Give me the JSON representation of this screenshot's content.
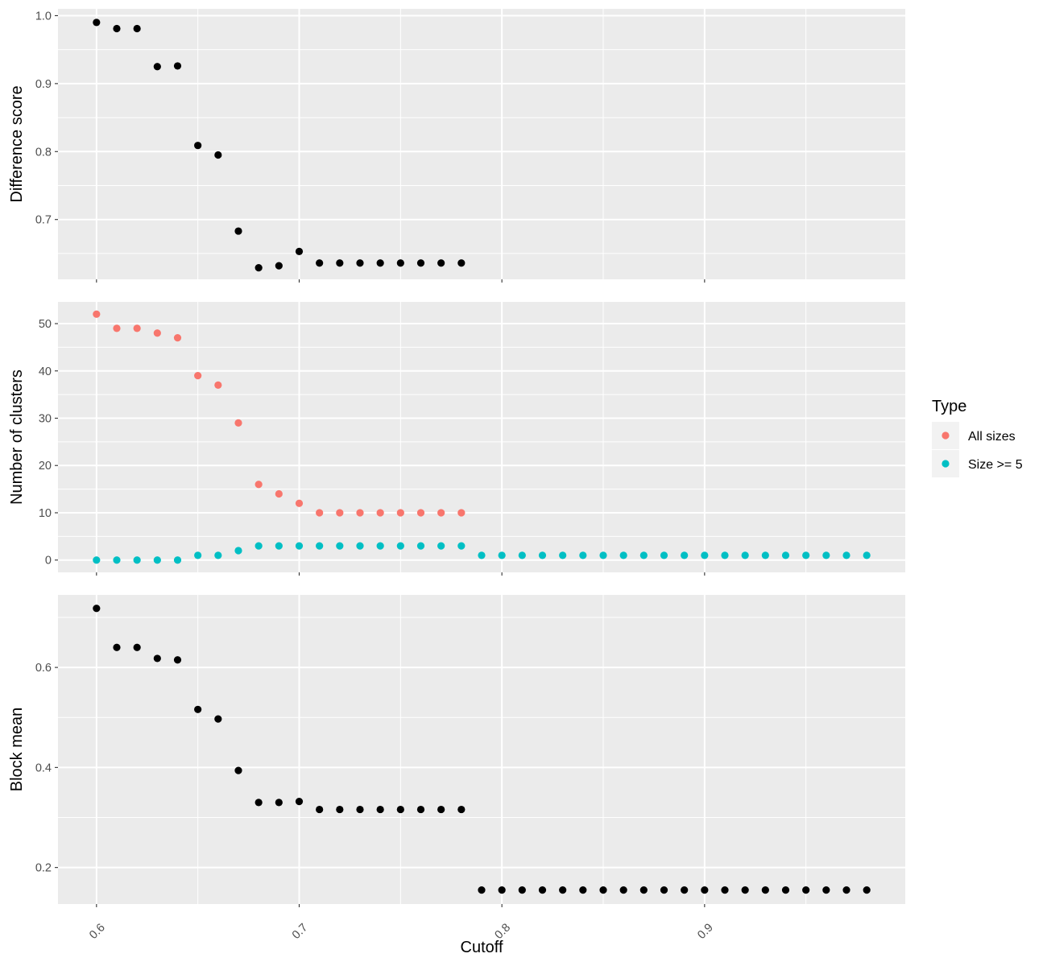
{
  "chart_data": {
    "type": "scatter",
    "xlabel": "Cutoff",
    "x_ticks": [
      "0.6",
      "0.7",
      "0.8",
      "0.9"
    ],
    "x_tick_values": [
      0.6,
      0.7,
      0.8,
      0.9
    ],
    "xlim": [
      0.581,
      0.999
    ],
    "grid": true,
    "legend": {
      "title": "Type",
      "placement": "right",
      "entries": [
        {
          "name": "All sizes",
          "color": "#F8766D"
        },
        {
          "name": "Size >= 5",
          "color": "#00BFC4"
        }
      ]
    },
    "panels": [
      {
        "id": "difference",
        "ylabel": "Difference score",
        "ylim": [
          0.612,
          1.01
        ],
        "y_ticks": [
          "0.7",
          "0.8",
          "0.9",
          "1.0"
        ],
        "y_tick_values": [
          0.7,
          0.8,
          0.9,
          1.0
        ],
        "series": [
          {
            "color": "#000000",
            "x": [
              0.6,
              0.61,
              0.62,
              0.63,
              0.64,
              0.65,
              0.66,
              0.67,
              0.68,
              0.69,
              0.7,
              0.71,
              0.72,
              0.73,
              0.74,
              0.75,
              0.76,
              0.77,
              0.78
            ],
            "y": [
              0.99,
              0.981,
              0.981,
              0.925,
              0.926,
              0.809,
              0.795,
              0.683,
              0.629,
              0.632,
              0.653,
              0.636,
              0.636,
              0.636,
              0.636,
              0.636,
              0.636,
              0.636,
              0.636
            ]
          }
        ]
      },
      {
        "id": "clusters",
        "ylabel": "Number of clusters",
        "ylim": [
          -2.6,
          54.6
        ],
        "y_ticks": [
          "0",
          "10",
          "20",
          "30",
          "40",
          "50"
        ],
        "y_tick_values": [
          0,
          10,
          20,
          30,
          40,
          50
        ],
        "series": [
          {
            "name": "All sizes",
            "color": "#F8766D",
            "x": [
              0.6,
              0.61,
              0.62,
              0.63,
              0.64,
              0.65,
              0.66,
              0.67,
              0.68,
              0.69,
              0.7,
              0.71,
              0.72,
              0.73,
              0.74,
              0.75,
              0.76,
              0.77,
              0.78
            ],
            "y": [
              52,
              49,
              49,
              48,
              47,
              39,
              37,
              29,
              16,
              14,
              12,
              10,
              10,
              10,
              10,
              10,
              10,
              10,
              10
            ]
          },
          {
            "name": "Size >= 5",
            "color": "#00BFC4",
            "x": [
              0.6,
              0.61,
              0.62,
              0.63,
              0.64,
              0.65,
              0.66,
              0.67,
              0.68,
              0.69,
              0.7,
              0.71,
              0.72,
              0.73,
              0.74,
              0.75,
              0.76,
              0.77,
              0.78,
              0.79,
              0.8,
              0.81,
              0.82,
              0.83,
              0.84,
              0.85,
              0.86,
              0.87,
              0.88,
              0.89,
              0.9,
              0.91,
              0.92,
              0.93,
              0.94,
              0.95,
              0.96,
              0.97,
              0.98
            ],
            "y": [
              0,
              0,
              0,
              0,
              0,
              1,
              1,
              2,
              3,
              3,
              3,
              3,
              3,
              3,
              3,
              3,
              3,
              3,
              3,
              1,
              1,
              1,
              1,
              1,
              1,
              1,
              1,
              1,
              1,
              1,
              1,
              1,
              1,
              1,
              1,
              1,
              1,
              1,
              1
            ]
          }
        ]
      },
      {
        "id": "block",
        "ylabel": "Block mean",
        "ylim": [
          0.127,
          0.745
        ],
        "y_ticks": [
          "0.2",
          "0.4",
          "0.6"
        ],
        "y_tick_values": [
          0.2,
          0.4,
          0.6
        ],
        "series": [
          {
            "color": "#000000",
            "x": [
              0.6,
              0.61,
              0.62,
              0.63,
              0.64,
              0.65,
              0.66,
              0.67,
              0.68,
              0.69,
              0.7,
              0.71,
              0.72,
              0.73,
              0.74,
              0.75,
              0.76,
              0.77,
              0.78,
              0.79,
              0.8,
              0.81,
              0.82,
              0.83,
              0.84,
              0.85,
              0.86,
              0.87,
              0.88,
              0.89,
              0.9,
              0.91,
              0.92,
              0.93,
              0.94,
              0.95,
              0.96,
              0.97,
              0.98
            ],
            "y": [
              0.718,
              0.64,
              0.64,
              0.618,
              0.615,
              0.516,
              0.497,
              0.394,
              0.33,
              0.33,
              0.332,
              0.316,
              0.316,
              0.316,
              0.316,
              0.316,
              0.316,
              0.316,
              0.316,
              0.155,
              0.155,
              0.155,
              0.155,
              0.155,
              0.155,
              0.155,
              0.155,
              0.155,
              0.155,
              0.155,
              0.155,
              0.155,
              0.155,
              0.155,
              0.155,
              0.155,
              0.155,
              0.155,
              0.155
            ]
          }
        ]
      }
    ]
  }
}
